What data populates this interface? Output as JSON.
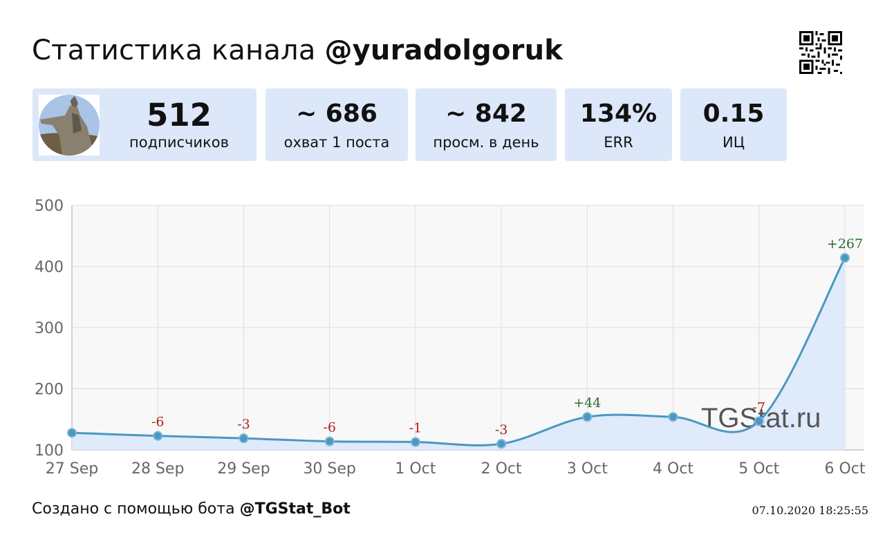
{
  "header": {
    "title_prefix": "Статистика канала ",
    "channel": "@yuradolgoruk"
  },
  "stats": {
    "subscribers": {
      "value": "512",
      "label": "подписчиков"
    },
    "reach": {
      "value": "~ 686",
      "label": "охват 1 поста"
    },
    "daily_views": {
      "value": "~ 842",
      "label": "просм. в день"
    },
    "err": {
      "value": "134%",
      "label": "ERR"
    },
    "ci": {
      "value": "0.15",
      "label": "ИЦ"
    }
  },
  "chart_data": {
    "type": "line",
    "categories": [
      "27 Sep",
      "28 Sep",
      "29 Sep",
      "30 Sep",
      "1 Oct",
      "2 Oct",
      "3 Oct",
      "4 Oct",
      "5 Oct",
      "6 Oct"
    ],
    "values": [
      128,
      123,
      119,
      114,
      113,
      110,
      154,
      154,
      147,
      414
    ],
    "annotations": [
      "",
      "-6",
      "-3",
      "-6",
      "-1",
      "-3",
      "+44",
      "",
      "-7",
      "+267"
    ],
    "yticks": [
      "100",
      "200",
      "300",
      "400",
      "500"
    ],
    "ylim": [
      100,
      500
    ],
    "grid": true,
    "watermark": "TGStat.ru",
    "colors": {
      "line": "#4a97c2",
      "fill": "#dbe8fa",
      "positive": "#2a6a2a",
      "negative": "#b02020",
      "plot_bg": "#f8f8f8",
      "grid": "#dddddd"
    }
  },
  "footer": {
    "prefix": "Создано с помощью бота ",
    "bot": "@TGStat_Bot",
    "timestamp": "07.10.2020 18:25:55"
  },
  "icons": {
    "qr": "qr-code-icon",
    "avatar": "channel-avatar"
  }
}
